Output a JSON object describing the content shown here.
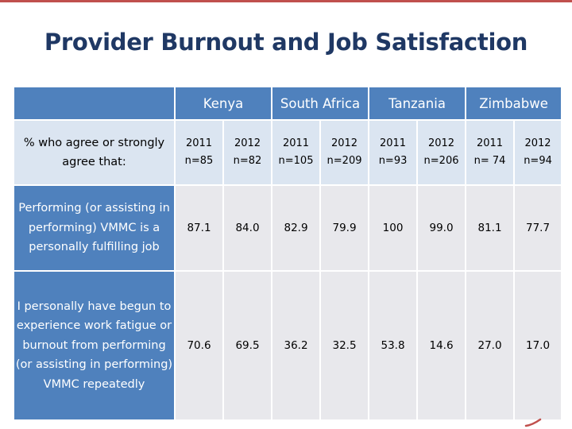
{
  "title": "Provider Burnout and Job Satisfaction",
  "accent_color": "#c0504d",
  "title_color": "#1f3864",
  "header_color": "#4f81bd",
  "countries": [
    "Kenya",
    "South Africa",
    "Tanzania",
    "Zimbabwe"
  ],
  "subheader_label": "% who agree or strongly agree that:",
  "columns": [
    {
      "year": "2011",
      "n": "n=85"
    },
    {
      "year": "2012",
      "n": "n=82"
    },
    {
      "year": "2011",
      "n": "n=105"
    },
    {
      "year": "2012",
      "n": "n=209"
    },
    {
      "year": "2011",
      "n": "n=93"
    },
    {
      "year": "2012",
      "n": "n=206"
    },
    {
      "year": "2011",
      "n": "n= 74"
    },
    {
      "year": "2012",
      "n": "n=94"
    }
  ],
  "rows": [
    {
      "label": "Performing (or assisting in performing) VMMC is a personally fulfilling job",
      "values": [
        "87.1",
        "84.0",
        "82.9",
        "79.9",
        "100",
        "99.0",
        "81.1",
        "77.7"
      ]
    },
    {
      "label": "I personally have begun to experience work fatigue or burnout from performing (or assisting in performing) VMMC repeatedly",
      "values": [
        "70.6",
        "69.5",
        "36.2",
        "32.5",
        "53.8",
        "14.6",
        "27.0",
        "17.0"
      ]
    }
  ]
}
